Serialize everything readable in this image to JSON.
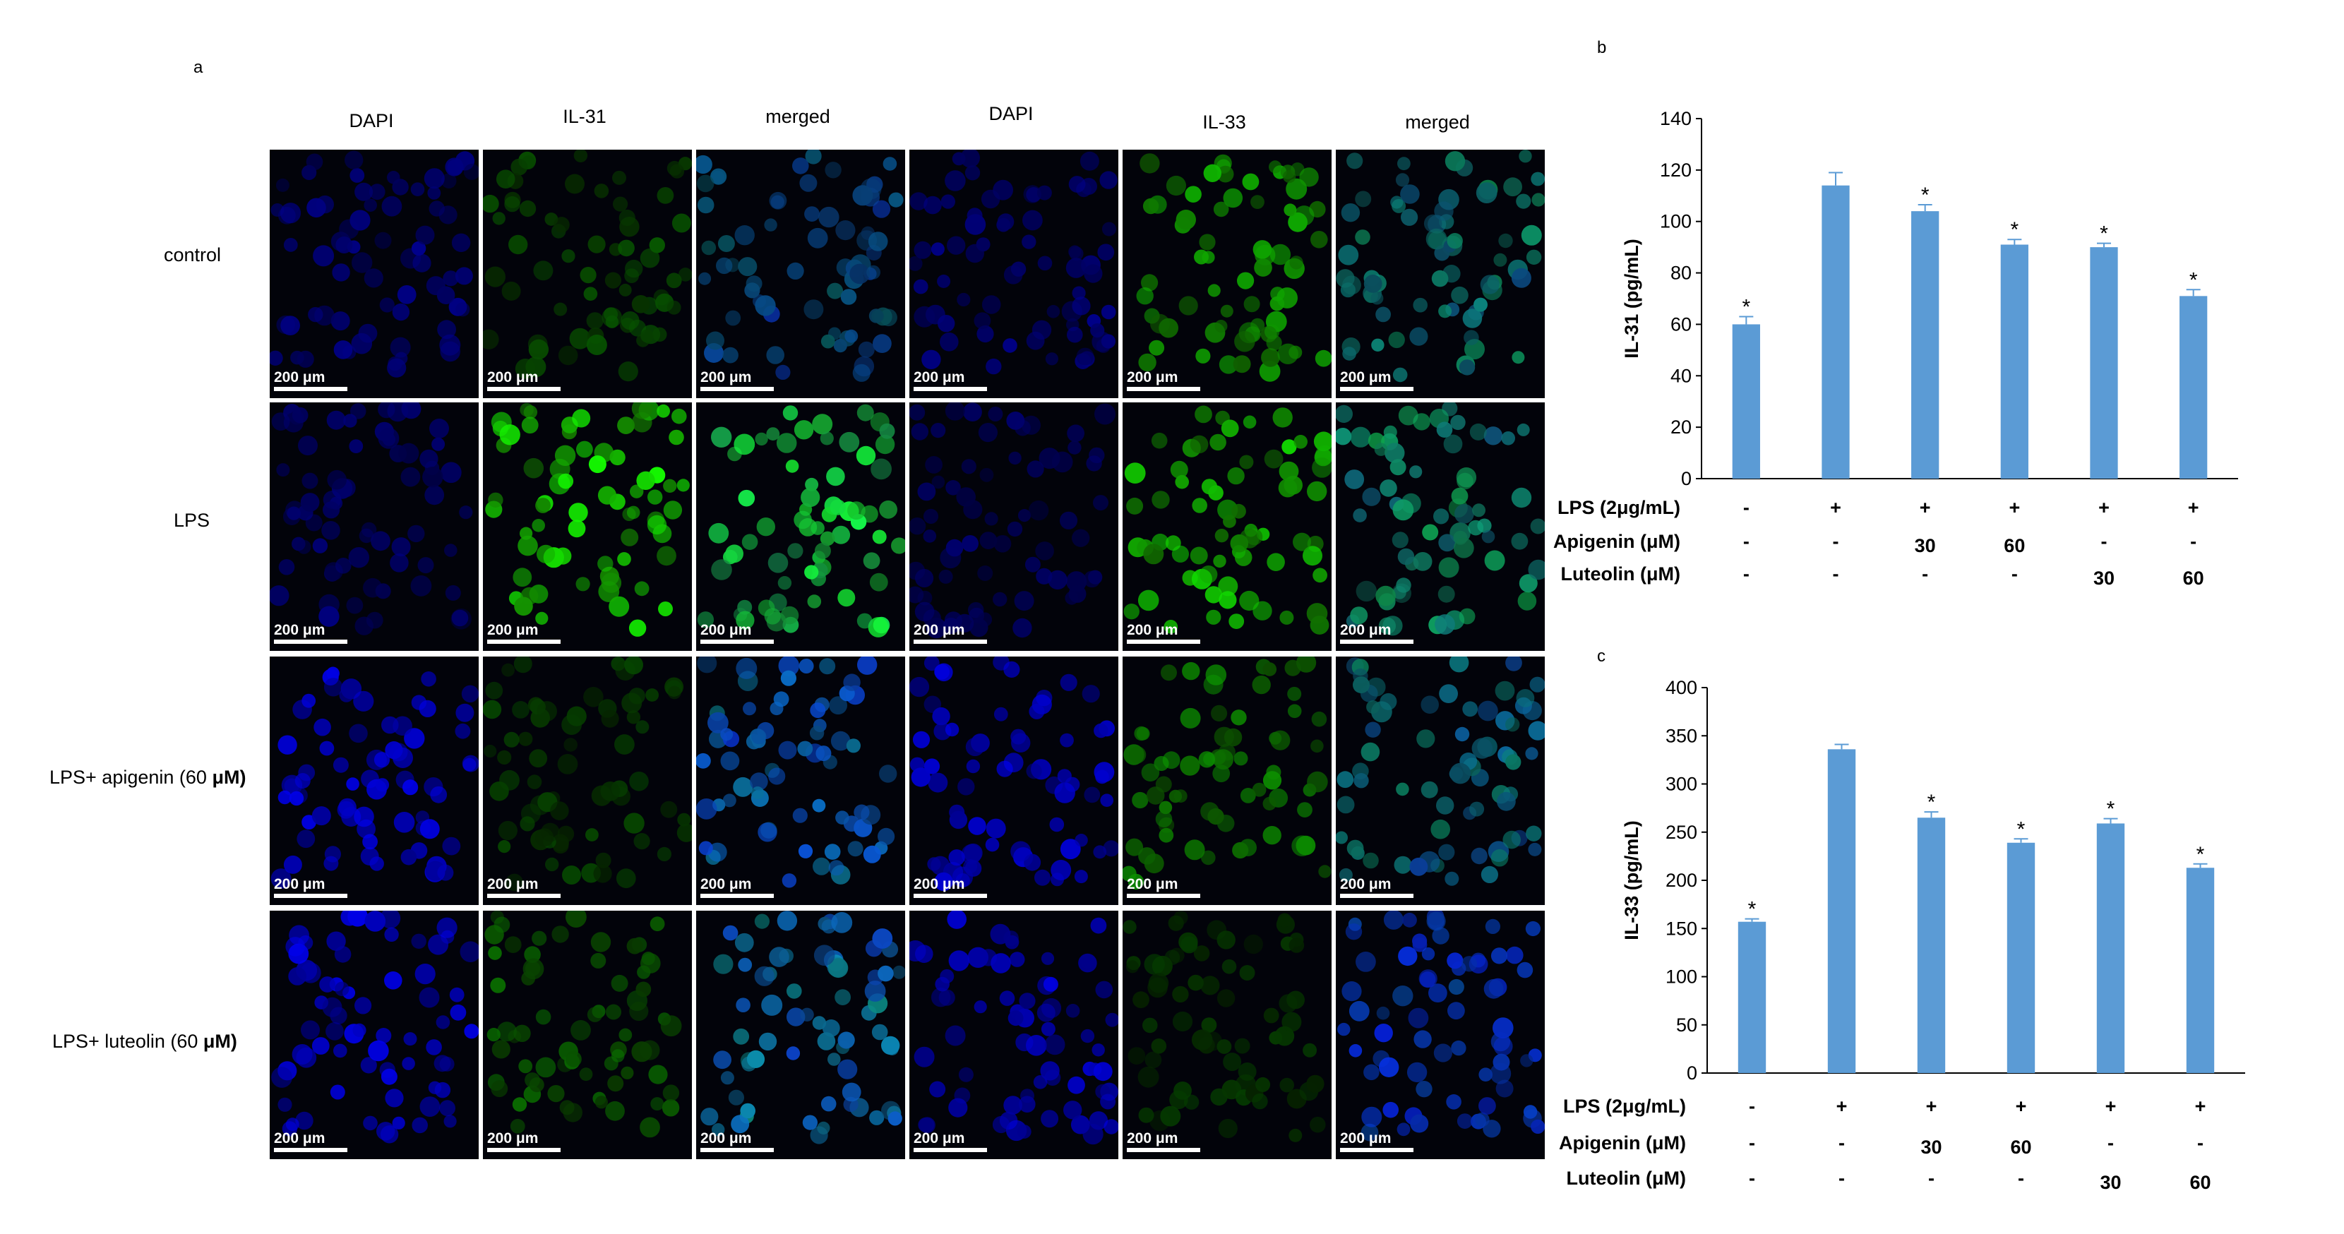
{
  "figure": {
    "panel_a_label": "a",
    "panel_b_label": "b",
    "panel_c_label": "c",
    "column_headers": [
      "DAPI",
      "IL-31",
      "merged",
      "DAPI",
      "IL-33",
      "merged"
    ],
    "row_labels": [
      {
        "text": "control",
        "bold": ""
      },
      {
        "text": "LPS",
        "bold": ""
      },
      {
        "text": "LPS+ apigenin (60 ",
        "bold": "μM)"
      },
      {
        "text": "LPS+ luteolin (60 ",
        "bold": "μM)"
      }
    ],
    "scale_bar_label": "200 μm"
  },
  "chart_data": [
    {
      "type": "bar",
      "panel": "b",
      "ylabel": "IL-31 (pg/mL)",
      "ylim": [
        0,
        140
      ],
      "yticks": [
        0,
        20,
        40,
        60,
        80,
        100,
        120,
        140
      ],
      "categories": [
        "control",
        "LPS",
        "LPS+Apigenin 30",
        "LPS+Apigenin 60",
        "LPS+Luteolin 30",
        "LPS+Luteolin 60"
      ],
      "values": [
        60,
        114,
        104,
        91,
        90,
        71
      ],
      "errors": [
        3,
        5,
        2.5,
        2,
        1.5,
        2.5
      ],
      "significance": [
        "*",
        "",
        "*",
        "*",
        "*",
        "*"
      ],
      "bar_color": "#5b9bd5",
      "condition_rows": [
        {
          "label": "LPS (2μg/mL)",
          "values": [
            "-",
            "+",
            "+",
            "+",
            "+",
            "+"
          ]
        },
        {
          "label": "Apigenin (μM)",
          "values": [
            "-",
            "-",
            "30",
            "60",
            "-",
            "-"
          ]
        },
        {
          "label": "Luteolin (μM)",
          "values": [
            "-",
            "-",
            "-",
            "-",
            "30",
            "60"
          ]
        }
      ]
    },
    {
      "type": "bar",
      "panel": "c",
      "ylabel": "IL-33 (pg/mL)",
      "ylim": [
        0,
        400
      ],
      "yticks": [
        0,
        50,
        100,
        150,
        200,
        250,
        300,
        350,
        400
      ],
      "categories": [
        "control",
        "LPS",
        "LPS+Apigenin 30",
        "LPS+Apigenin 60",
        "LPS+Luteolin 30",
        "LPS+Luteolin 60"
      ],
      "values": [
        157,
        336,
        265,
        239,
        259,
        213
      ],
      "errors": [
        3,
        5,
        6,
        4,
        5,
        4
      ],
      "significance": [
        "*",
        "",
        "*",
        "*",
        "*",
        "*"
      ],
      "bar_color": "#5b9bd5",
      "condition_rows": [
        {
          "label": "LPS (2μg/mL)",
          "values": [
            "-",
            "+",
            "+",
            "+",
            "+",
            "+"
          ]
        },
        {
          "label": "Apigenin (μM)",
          "values": [
            "-",
            "-",
            "30",
            "60",
            "-",
            "-"
          ]
        },
        {
          "label": "Luteolin (μM)",
          "values": [
            "-",
            "-",
            "-",
            "-",
            "30",
            "60"
          ]
        }
      ]
    }
  ]
}
